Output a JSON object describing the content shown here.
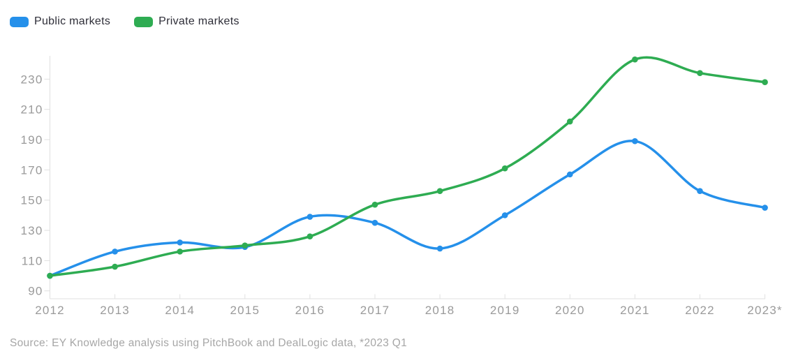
{
  "legend": {
    "items": [
      {
        "label": "Public markets",
        "color": "#2590ea"
      },
      {
        "label": "Private markets",
        "color": "#2eac52"
      }
    ]
  },
  "source_note": "Source: EY Knowledge analysis using PitchBook and DealLogic data, *2023 Q1",
  "colors": {
    "public_series": "#2590ea",
    "private_series": "#2eac52",
    "axis_line": "#e0e0e0",
    "axis_label": "#9a9a9a",
    "legend_text": "#2e2e38",
    "source_text": "#a6a6a6",
    "background": "#ffffff"
  },
  "chart_data": {
    "type": "line",
    "title": "",
    "xlabel": "",
    "ylabel": "",
    "categories": [
      "2012",
      "2013",
      "2014",
      "2015",
      "2016",
      "2017",
      "2018",
      "2019",
      "2020",
      "2021",
      "2022",
      "2023*"
    ],
    "series": [
      {
        "name": "Public markets",
        "color": "#2590ea",
        "values": [
          100,
          116,
          122,
          119,
          139,
          135,
          118,
          140,
          167,
          189,
          156,
          145
        ]
      },
      {
        "name": "Private markets",
        "color": "#2eac52",
        "values": [
          100,
          106,
          116,
          120,
          126,
          147,
          156,
          171,
          202,
          243,
          234,
          228
        ]
      }
    ],
    "ylim": [
      90,
      230
    ],
    "yticks": [
      90,
      110,
      130,
      150,
      170,
      190,
      210,
      230
    ],
    "grid": false,
    "smooth": true,
    "point_markers": true,
    "legend_position": "top-left",
    "index_base_note": "Both series start at 100 in 2012"
  }
}
